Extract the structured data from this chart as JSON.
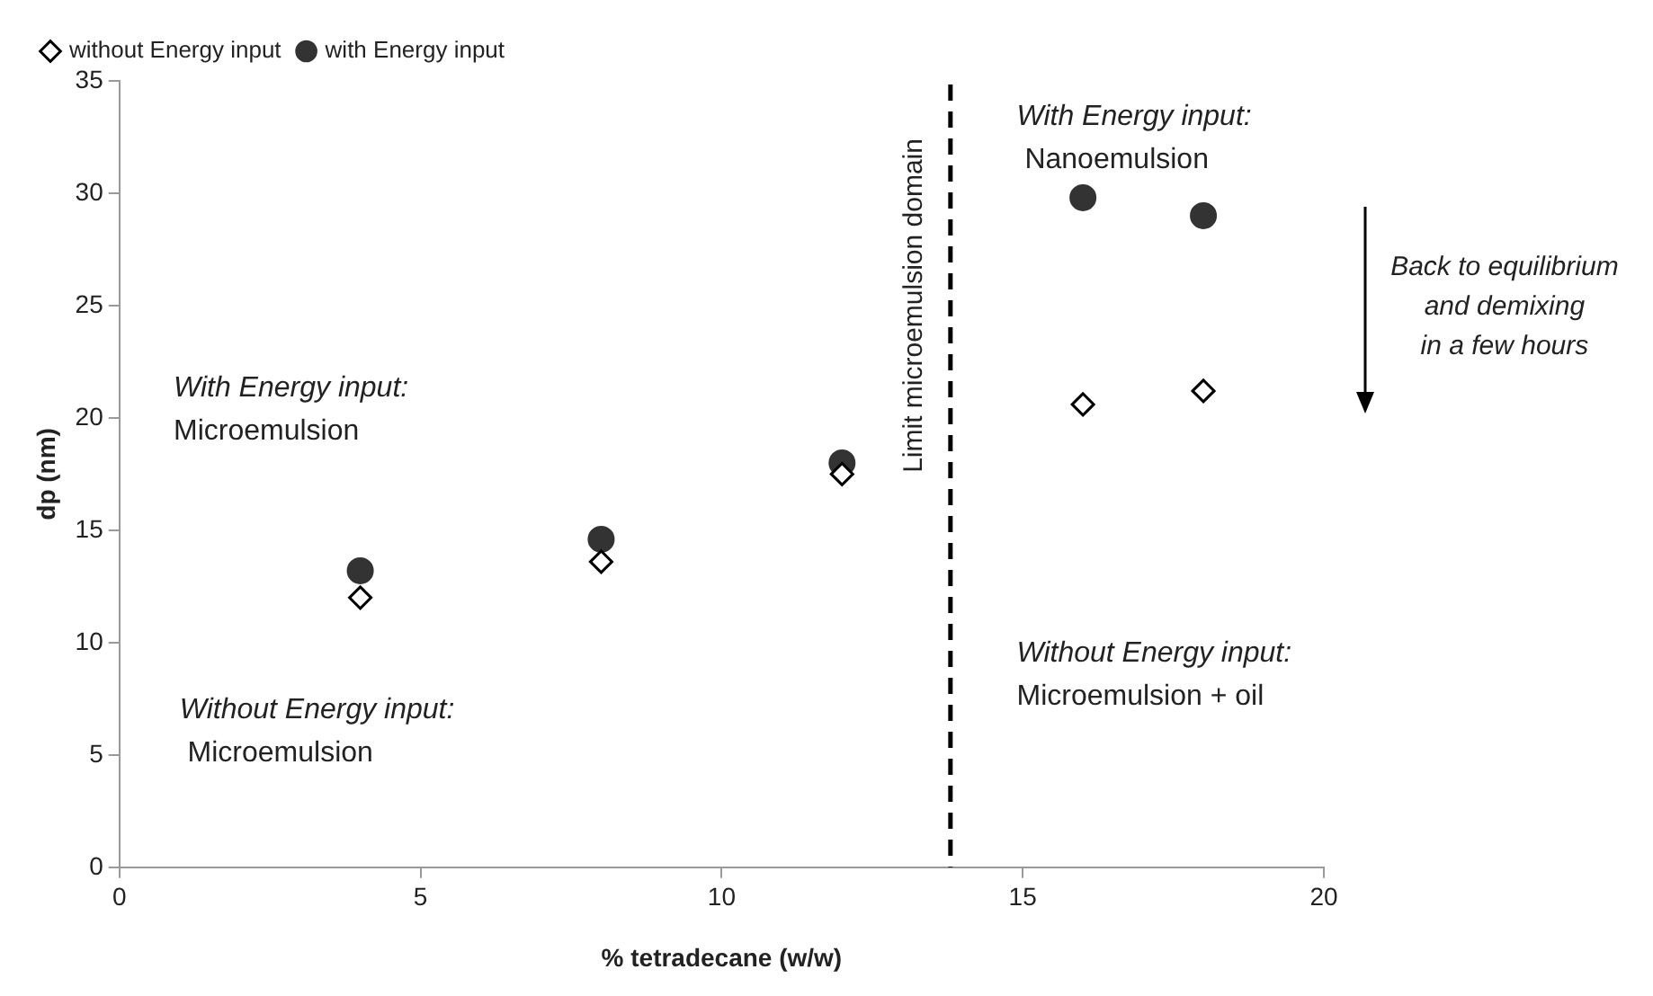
{
  "chart_data": {
    "type": "scatter",
    "xlabel": "% tetradecane (w/w)",
    "ylabel": "dp (nm)",
    "xlim": [
      0,
      20
    ],
    "xticks": [
      0,
      5,
      10,
      15,
      20
    ],
    "ylim": [
      0,
      35
    ],
    "yticks": [
      0,
      5,
      10,
      15,
      20,
      25,
      30,
      35
    ],
    "legend": "top left",
    "series": [
      {
        "name": "without Energy input",
        "color": "#000000",
        "marker": "diamond",
        "x": [
          4,
          8,
          12,
          16,
          18
        ],
        "values": [
          12,
          13.6,
          17.5,
          20.6,
          21.2
        ]
      },
      {
        "name": "with Energy input",
        "color": "#333333",
        "marker": "circle",
        "x": [
          4,
          8,
          12,
          16,
          18
        ],
        "values": [
          13.2,
          14.6,
          18,
          29.8,
          29
        ]
      }
    ],
    "ref_lines": [
      {
        "axis": "x",
        "value": 13.8,
        "label": "Limit microemulsion domain",
        "line_style": "dashed",
        "color": "#000000"
      }
    ],
    "annotations": [
      "With Energy input:\nMicroemulsion",
      "Without Energy input:\n Microemulsion",
      "With Energy input:\n Nanoemulsion",
      "Without Energy input:\nMicroemulsion + oil",
      "Back to equilibrium\nand demixing\nin a few hours"
    ]
  }
}
